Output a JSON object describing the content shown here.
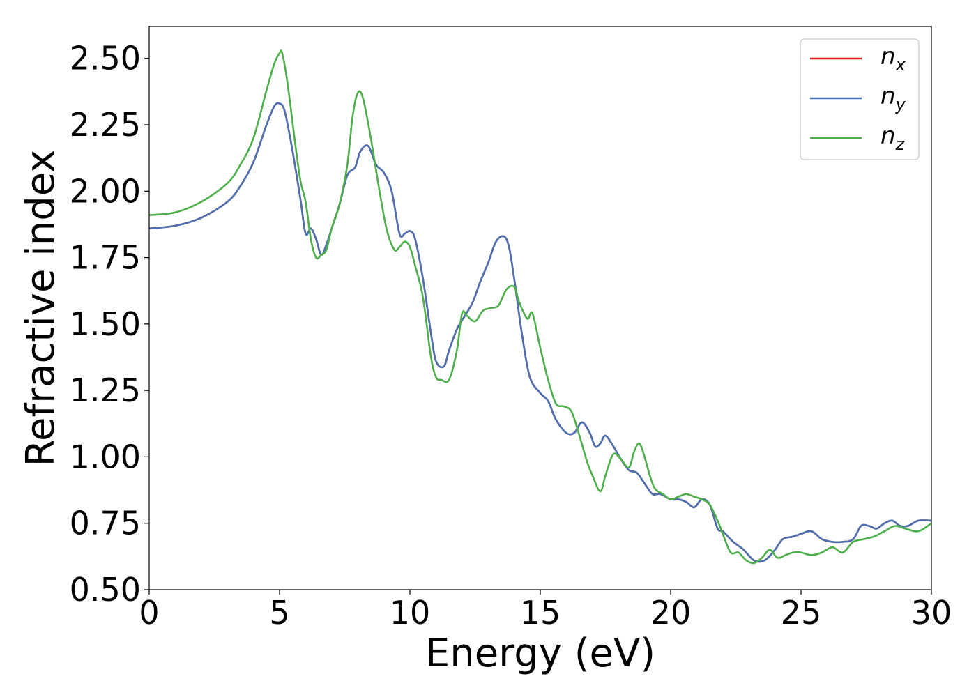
{
  "chart_data": {
    "type": "line",
    "xlabel": "Energy (eV)",
    "ylabel": "Refractive index",
    "xlim": [
      0,
      30
    ],
    "ylim": [
      0.5,
      2.62
    ],
    "xticks": [
      0,
      5,
      10,
      15,
      20,
      25,
      30
    ],
    "xtick_labels": [
      "0",
      "5",
      "10",
      "15",
      "20",
      "25",
      "30"
    ],
    "yticks": [
      0.5,
      0.75,
      1.0,
      1.25,
      1.5,
      1.75,
      2.0,
      2.25,
      2.5
    ],
    "ytick_labels": [
      "0.50",
      "0.75",
      "1.00",
      "1.25",
      "1.50",
      "1.75",
      "2.00",
      "2.25",
      "2.50"
    ],
    "grid": false,
    "legend_position": "top-right",
    "series": [
      {
        "name": "n_x",
        "label_base": "n",
        "label_sub": "x",
        "color": "#e41a1c",
        "x": [
          0,
          1,
          2,
          3,
          3.5,
          4,
          4.5,
          4.8,
          5,
          5.2,
          5.5,
          5.8,
          6,
          6.2,
          6.4,
          6.6,
          6.8,
          7,
          7.3,
          7.6,
          7.9,
          8.1,
          8.4,
          8.7,
          9,
          9.3,
          9.6,
          9.8,
          10,
          10.2,
          10.5,
          10.8,
          11,
          11.3,
          11.5,
          11.8,
          12.1,
          12.4,
          12.7,
          13,
          13.3,
          13.6,
          13.8,
          14,
          14.3,
          14.6,
          15,
          15.3,
          15.6,
          16,
          16.3,
          16.6,
          16.9,
          17.1,
          17.3,
          17.5,
          17.8,
          18.1,
          18.4,
          18.7,
          19,
          19.3,
          19.6,
          20,
          20.3,
          20.6,
          20.9,
          21.2,
          21.5,
          21.8,
          22,
          22.4,
          22.8,
          23.2,
          23.6,
          24,
          24.3,
          24.7,
          25,
          25.4,
          25.8,
          26.2,
          26.6,
          27,
          27.3,
          27.6,
          27.9,
          28.2,
          28.5,
          28.8,
          29.1,
          29.5,
          30
        ],
        "y": [
          1.86,
          1.87,
          1.9,
          1.96,
          2.02,
          2.11,
          2.25,
          2.32,
          2.33,
          2.3,
          2.15,
          1.97,
          1.84,
          1.86,
          1.82,
          1.76,
          1.8,
          1.86,
          1.95,
          2.06,
          2.09,
          2.15,
          2.17,
          2.1,
          2.07,
          2.0,
          1.84,
          1.84,
          1.85,
          1.82,
          1.67,
          1.47,
          1.36,
          1.34,
          1.4,
          1.48,
          1.53,
          1.58,
          1.66,
          1.73,
          1.81,
          1.83,
          1.79,
          1.67,
          1.46,
          1.3,
          1.24,
          1.21,
          1.14,
          1.09,
          1.09,
          1.13,
          1.09,
          1.04,
          1.05,
          1.08,
          1.04,
          0.99,
          0.95,
          0.94,
          0.9,
          0.86,
          0.86,
          0.84,
          0.84,
          0.83,
          0.81,
          0.84,
          0.82,
          0.73,
          0.72,
          0.68,
          0.65,
          0.61,
          0.61,
          0.65,
          0.69,
          0.7,
          0.71,
          0.72,
          0.69,
          0.68,
          0.68,
          0.69,
          0.74,
          0.74,
          0.73,
          0.75,
          0.76,
          0.74,
          0.74,
          0.76,
          0.76
        ]
      },
      {
        "name": "n_y",
        "label_base": "n",
        "label_sub": "y",
        "color": "#4a72b0",
        "x": [
          0,
          1,
          2,
          3,
          3.5,
          4,
          4.5,
          4.8,
          5,
          5.2,
          5.5,
          5.8,
          6,
          6.2,
          6.4,
          6.6,
          6.8,
          7,
          7.3,
          7.6,
          7.9,
          8.1,
          8.4,
          8.7,
          9,
          9.3,
          9.6,
          9.8,
          10,
          10.2,
          10.5,
          10.8,
          11,
          11.3,
          11.5,
          11.8,
          12.1,
          12.4,
          12.7,
          13,
          13.3,
          13.6,
          13.8,
          14,
          14.3,
          14.6,
          15,
          15.3,
          15.6,
          16,
          16.3,
          16.6,
          16.9,
          17.1,
          17.3,
          17.5,
          17.8,
          18.1,
          18.4,
          18.7,
          19,
          19.3,
          19.6,
          20,
          20.3,
          20.6,
          20.9,
          21.2,
          21.5,
          21.8,
          22,
          22.4,
          22.8,
          23.2,
          23.6,
          24,
          24.3,
          24.7,
          25,
          25.4,
          25.8,
          26.2,
          26.6,
          27,
          27.3,
          27.6,
          27.9,
          28.2,
          28.5,
          28.8,
          29.1,
          29.5,
          30
        ],
        "y": [
          1.86,
          1.87,
          1.9,
          1.96,
          2.02,
          2.11,
          2.25,
          2.32,
          2.33,
          2.3,
          2.15,
          1.97,
          1.84,
          1.86,
          1.82,
          1.76,
          1.8,
          1.86,
          1.95,
          2.06,
          2.09,
          2.15,
          2.17,
          2.1,
          2.07,
          2.0,
          1.84,
          1.84,
          1.85,
          1.82,
          1.67,
          1.47,
          1.36,
          1.34,
          1.4,
          1.48,
          1.53,
          1.58,
          1.66,
          1.73,
          1.81,
          1.83,
          1.79,
          1.67,
          1.46,
          1.3,
          1.24,
          1.21,
          1.14,
          1.09,
          1.09,
          1.13,
          1.09,
          1.04,
          1.05,
          1.08,
          1.04,
          0.99,
          0.95,
          0.94,
          0.9,
          0.86,
          0.86,
          0.84,
          0.84,
          0.83,
          0.81,
          0.84,
          0.82,
          0.73,
          0.72,
          0.68,
          0.65,
          0.61,
          0.61,
          0.65,
          0.69,
          0.7,
          0.71,
          0.72,
          0.69,
          0.68,
          0.68,
          0.69,
          0.74,
          0.74,
          0.73,
          0.75,
          0.76,
          0.74,
          0.74,
          0.76,
          0.76
        ]
      },
      {
        "name": "n_z",
        "label_base": "n",
        "label_sub": "z",
        "color": "#4daf4a",
        "x": [
          0,
          1,
          2,
          3,
          3.5,
          4,
          4.5,
          4.8,
          5,
          5.1,
          5.3,
          5.6,
          5.8,
          6,
          6.2,
          6.4,
          6.6,
          6.8,
          7,
          7.3,
          7.6,
          7.8,
          8,
          8.2,
          8.5,
          8.8,
          9.1,
          9.4,
          9.6,
          9.8,
          10,
          10.2,
          10.5,
          10.8,
          11,
          11.2,
          11.5,
          11.8,
          12,
          12.2,
          12.5,
          12.8,
          13.1,
          13.4,
          13.7,
          14,
          14.2,
          14.5,
          14.7,
          15,
          15.3,
          15.6,
          15.9,
          16.2,
          16.5,
          16.8,
          17,
          17.3,
          17.5,
          17.8,
          18.1,
          18.4,
          18.6,
          18.8,
          19,
          19.2,
          19.4,
          19.7,
          20,
          20.3,
          20.6,
          20.9,
          21.2,
          21.5,
          21.8,
          22,
          22.3,
          22.6,
          22.9,
          23.2,
          23.5,
          23.8,
          24.1,
          24.4,
          24.7,
          25,
          25.4,
          25.8,
          26.2,
          26.6,
          27,
          27.4,
          27.8,
          28.2,
          28.6,
          29,
          29.5,
          30
        ],
        "y": [
          1.91,
          1.92,
          1.96,
          2.03,
          2.1,
          2.2,
          2.38,
          2.48,
          2.52,
          2.52,
          2.41,
          2.18,
          2.04,
          1.96,
          1.82,
          1.75,
          1.76,
          1.78,
          1.86,
          1.95,
          2.1,
          2.28,
          2.37,
          2.35,
          2.2,
          2.02,
          1.86,
          1.78,
          1.79,
          1.81,
          1.79,
          1.72,
          1.6,
          1.38,
          1.3,
          1.29,
          1.29,
          1.4,
          1.54,
          1.53,
          1.51,
          1.55,
          1.56,
          1.57,
          1.63,
          1.64,
          1.58,
          1.52,
          1.54,
          1.41,
          1.29,
          1.2,
          1.19,
          1.17,
          1.08,
          0.98,
          0.93,
          0.87,
          0.93,
          1.01,
          0.99,
          0.96,
          1.02,
          1.05,
          1.0,
          0.93,
          0.88,
          0.86,
          0.84,
          0.85,
          0.86,
          0.85,
          0.84,
          0.82,
          0.76,
          0.71,
          0.64,
          0.64,
          0.61,
          0.6,
          0.62,
          0.65,
          0.62,
          0.63,
          0.64,
          0.64,
          0.63,
          0.64,
          0.66,
          0.64,
          0.68,
          0.69,
          0.7,
          0.72,
          0.74,
          0.73,
          0.72,
          0.75
        ]
      }
    ]
  }
}
